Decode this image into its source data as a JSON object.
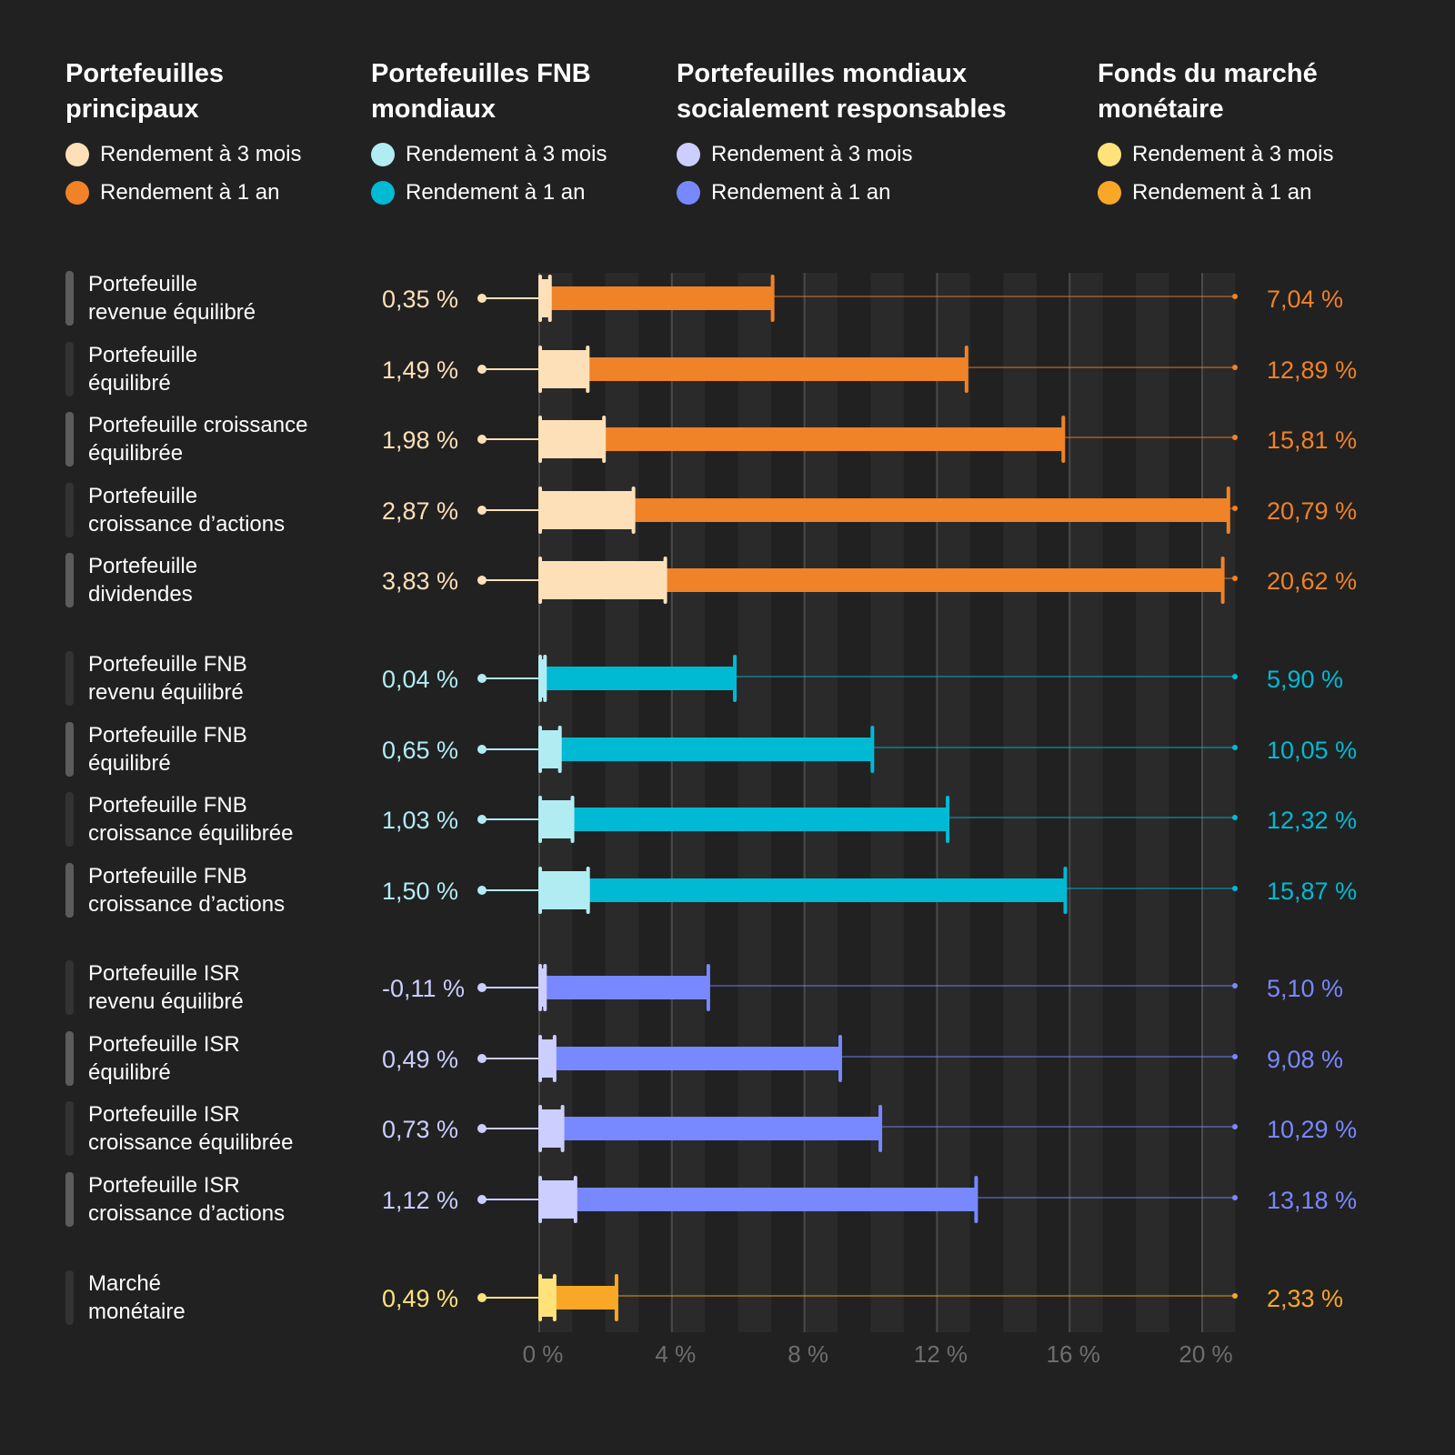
{
  "chart_data": {
    "type": "bar",
    "xlim": [
      0,
      21
    ],
    "xticks": [
      "0 %",
      "4 %",
      "8 %",
      "12 %",
      "16 %",
      "20 %"
    ],
    "xtick_values": [
      0,
      4,
      8,
      12,
      16,
      20
    ],
    "groups": [
      {
        "title": "Portefeuilles principaux",
        "legend": [
          "Rendement à 3 mois",
          "Rendement à 1 an"
        ],
        "colors": [
          "#fde0b8",
          "#f08228"
        ],
        "rows": [
          {
            "label": "Portefeuille\nrevenue équilibré",
            "m3": 0.35,
            "y1": 7.04,
            "m3_label": "0,35 %",
            "y1_label": "7,04 %"
          },
          {
            "label": "Portefeuille\néquilibré",
            "m3": 1.49,
            "y1": 12.89,
            "m3_label": "1,49 %",
            "y1_label": "12,89 %"
          },
          {
            "label": "Portefeuille croissance\néquilibrée",
            "m3": 1.98,
            "y1": 15.81,
            "m3_label": "1,98 %",
            "y1_label": "15,81 %"
          },
          {
            "label": "Portefeuille\ncroissance d’actions",
            "m3": 2.87,
            "y1": 20.79,
            "m3_label": "2,87 %",
            "y1_label": "20,79 %"
          },
          {
            "label": "Portefeuille\ndividendes",
            "m3": 3.83,
            "y1": 20.62,
            "m3_label": "3,83 %",
            "y1_label": "20,62 %"
          }
        ]
      },
      {
        "title": "Portefeuilles FNB mondiaux",
        "legend": [
          "Rendement à 3 mois",
          "Rendement à 1 an"
        ],
        "colors": [
          "#b2ecf3",
          "#00bad4"
        ],
        "rows": [
          {
            "label": "Portefeuille FNB\nrevenu équilibré",
            "m3": 0.04,
            "y1": 5.9,
            "m3_label": "0,04 %",
            "y1_label": "5,90 %"
          },
          {
            "label": "Portefeuille FNB\néquilibré",
            "m3": 0.65,
            "y1": 10.05,
            "m3_label": "0,65 %",
            "y1_label": "10,05 %"
          },
          {
            "label": "Portefeuille FNB\ncroissance équilibrée",
            "m3": 1.03,
            "y1": 12.32,
            "m3_label": "1,03 %",
            "y1_label": "12,32 %"
          },
          {
            "label": "Portefeuille FNB\ncroissance d’actions",
            "m3": 1.5,
            "y1": 15.87,
            "m3_label": "1,50 %",
            "y1_label": "15,87 %"
          }
        ]
      },
      {
        "title": "Portefeuilles mondiaux socialement responsables",
        "legend": [
          "Rendement à 3 mois",
          "Rendement à 1 an"
        ],
        "colors": [
          "#cbceff",
          "#7888ff"
        ],
        "rows": [
          {
            "label": "Portefeuille ISR\nrevenu équilibré",
            "m3": -0.11,
            "y1": 5.1,
            "m3_label": "-0,11 %",
            "y1_label": "5,10 %"
          },
          {
            "label": "Portefeuille ISR\néquilibré",
            "m3": 0.49,
            "y1": 9.08,
            "m3_label": "0,49 %",
            "y1_label": "9,08 %"
          },
          {
            "label": "Portefeuille ISR\ncroissance équilibrée",
            "m3": 0.73,
            "y1": 10.29,
            "m3_label": "0,73 %",
            "y1_label": "10,29 %"
          },
          {
            "label": "Portefeuille ISR\ncroissance d’actions",
            "m3": 1.12,
            "y1": 13.18,
            "m3_label": "1,12 %",
            "y1_label": "13,18 %"
          }
        ]
      },
      {
        "title": "Fonds du marché monétaire",
        "legend": [
          "Rendement à 3 mois",
          "Rendement à 1 an"
        ],
        "colors": [
          "#ffe27a",
          "#f8a826"
        ],
        "rows": [
          {
            "label": "Marché\nmonétaire",
            "m3": 0.49,
            "y1": 2.33,
            "m3_label": "0,49 %",
            "y1_label": "2,33 %"
          }
        ]
      }
    ]
  }
}
